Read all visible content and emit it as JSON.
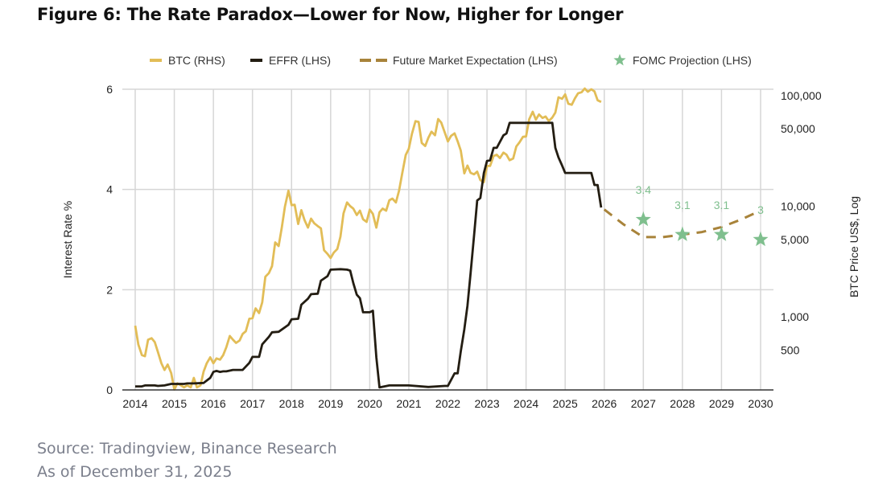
{
  "figure": {
    "title": "Figure 6: The Rate Paradox—Lower for Now, Higher for Longer",
    "source": "Source: Tradingview, Binance Research",
    "as_of": "As of December 31, 2025"
  },
  "colors": {
    "btc": "#e2bd57",
    "effr": "#231d12",
    "future": "#a8833a",
    "fomc": "#7fbf8e",
    "grid": "#d6d6d6",
    "axis": "#333333"
  },
  "chart_data": {
    "type": "line",
    "title": "Figure 6: The Rate Paradox—Lower for Now, Higher for Longer",
    "xlabel": "",
    "ylabel": "Interest Rate %",
    "y2label": "BTC Price US$, Log",
    "xlim": [
      2014,
      2030
    ],
    "ylim": [
      0,
      6
    ],
    "y2lim": [
      218,
      114000
    ],
    "y2scale": "log",
    "grid": true,
    "legend_position": "top",
    "x_ticks": [
      "2014",
      "2015",
      "2016",
      "2017",
      "2018",
      "2019",
      "2020",
      "2021",
      "2022",
      "2023",
      "2024",
      "2025",
      "2026",
      "2027",
      "2028",
      "2029",
      "2030"
    ],
    "y_ticks": [
      "0",
      "2",
      "4",
      "6"
    ],
    "y2_ticks": [
      {
        "value": 100000,
        "label": "100,000"
      },
      {
        "value": 50000,
        "label": "50,000"
      },
      {
        "value": 10000,
        "label": "10,000"
      },
      {
        "value": 5000,
        "label": "5,000"
      },
      {
        "value": 1000,
        "label": "1,000"
      },
      {
        "value": 500,
        "label": "500"
      }
    ],
    "legend": [
      {
        "name": "BTC (RHS)",
        "style": "solid",
        "key": "btc"
      },
      {
        "name": "EFFR (LHS)",
        "style": "solid",
        "key": "effr"
      },
      {
        "name": "Future Market Expectation (LHS)",
        "style": "dashed",
        "key": "future"
      },
      {
        "name": "FOMC Projection (LHS)",
        "style": "star",
        "key": "fomc"
      }
    ],
    "series": [
      {
        "name": "BTC (RHS)",
        "axis": "right",
        "x": [
          2014.0,
          2014.08,
          2014.17,
          2014.25,
          2014.33,
          2014.42,
          2014.5,
          2014.58,
          2014.67,
          2014.75,
          2014.83,
          2014.92,
          2015.0,
          2015.08,
          2015.17,
          2015.25,
          2015.33,
          2015.42,
          2015.5,
          2015.58,
          2015.67,
          2015.75,
          2015.83,
          2015.92,
          2016.0,
          2016.08,
          2016.17,
          2016.25,
          2016.33,
          2016.42,
          2016.5,
          2016.58,
          2016.67,
          2016.75,
          2016.83,
          2016.92,
          2017.0,
          2017.08,
          2017.17,
          2017.25,
          2017.33,
          2017.42,
          2017.5,
          2017.58,
          2017.67,
          2017.75,
          2017.83,
          2017.92,
          2018.0,
          2018.08,
          2018.17,
          2018.25,
          2018.33,
          2018.42,
          2018.5,
          2018.58,
          2018.67,
          2018.75,
          2018.83,
          2018.92,
          2019.0,
          2019.08,
          2019.17,
          2019.25,
          2019.33,
          2019.42,
          2019.5,
          2019.58,
          2019.67,
          2019.75,
          2019.83,
          2019.92,
          2020.0,
          2020.08,
          2020.17,
          2020.25,
          2020.33,
          2020.42,
          2020.5,
          2020.58,
          2020.67,
          2020.75,
          2020.83,
          2020.92,
          2021.0,
          2021.08,
          2021.17,
          2021.25,
          2021.33,
          2021.42,
          2021.5,
          2021.58,
          2021.67,
          2021.75,
          2021.83,
          2021.92,
          2022.0,
          2022.08,
          2022.17,
          2022.25,
          2022.33,
          2022.42,
          2022.5,
          2022.58,
          2022.67,
          2022.75,
          2022.83,
          2022.92,
          2023.0,
          2023.08,
          2023.17,
          2023.25,
          2023.33,
          2023.42,
          2023.5,
          2023.58,
          2023.67,
          2023.75,
          2023.83,
          2023.92,
          2024.0,
          2024.08,
          2024.17,
          2024.25,
          2024.33,
          2024.42,
          2024.5,
          2024.58,
          2024.67,
          2024.75,
          2024.83,
          2024.92,
          2025.0,
          2025.08,
          2025.17,
          2025.25,
          2025.33,
          2025.42,
          2025.5,
          2025.58,
          2025.67,
          2025.75,
          2025.83,
          2025.92
        ],
        "values": [
          830,
          560,
          450,
          440,
          620,
          640,
          590,
          480,
          380,
          330,
          370,
          310,
          220,
          250,
          240,
          230,
          240,
          230,
          280,
          230,
          240,
          320,
          380,
          430,
          380,
          420,
          410,
          450,
          530,
          670,
          620,
          580,
          610,
          700,
          740,
          960,
          970,
          1190,
          1080,
          1350,
          2300,
          2480,
          2870,
          4700,
          4360,
          6400,
          9900,
          13800,
          10200,
          10300,
          6900,
          9200,
          7500,
          6400,
          7700,
          7000,
          6600,
          6300,
          4000,
          3700,
          3400,
          3800,
          4100,
          5300,
          8600,
          10800,
          10000,
          9500,
          8300,
          9100,
          7600,
          7200,
          9300,
          8500,
          6400,
          8800,
          9500,
          9100,
          11300,
          11700,
          10800,
          13800,
          19700,
          29000,
          33000,
          45000,
          58700,
          57800,
          37300,
          35000,
          41500,
          47100,
          43800,
          61300,
          57000,
          46300,
          38500,
          43200,
          45500,
          38600,
          31800,
          19800,
          23300,
          20000,
          19400,
          20500,
          17200,
          16500,
          23100,
          23100,
          28400,
          29200,
          27200,
          30500,
          29200,
          26000,
          27000,
          34600,
          37700,
          42300,
          42600,
          61100,
          71300,
          60600,
          67500,
          62700,
          64600,
          58900,
          63300,
          70200,
          96400,
          93400,
          102400,
          84400,
          82500,
          94200,
          104600,
          107100,
          115700,
          108200,
          114000,
          109000,
          90600,
          87500
        ]
      },
      {
        "name": "EFFR (LHS)",
        "axis": "left",
        "x": [
          2014.0,
          2014.17,
          2014.25,
          2014.33,
          2014.5,
          2014.58,
          2014.75,
          2014.92,
          2015.0,
          2015.25,
          2015.33,
          2015.5,
          2015.75,
          2015.92,
          2016.0,
          2016.08,
          2016.17,
          2016.25,
          2016.33,
          2016.5,
          2016.75,
          2016.92,
          2017.0,
          2017.17,
          2017.25,
          2017.42,
          2017.5,
          2017.67,
          2017.92,
          2018.0,
          2018.17,
          2018.25,
          2018.42,
          2018.5,
          2018.67,
          2018.75,
          2018.92,
          2019.0,
          2019.25,
          2019.42,
          2019.5,
          2019.58,
          2019.67,
          2019.75,
          2019.83,
          2019.92,
          2020.0,
          2020.08,
          2020.17,
          2020.25,
          2020.5,
          2021.0,
          2021.5,
          2021.92,
          2022.0,
          2022.17,
          2022.25,
          2022.33,
          2022.42,
          2022.5,
          2022.58,
          2022.67,
          2022.75,
          2022.83,
          2022.92,
          2023.0,
          2023.08,
          2023.17,
          2023.25,
          2023.42,
          2023.5,
          2023.58,
          2024.0,
          2024.5,
          2024.67,
          2024.75,
          2024.83,
          2024.92,
          2025.0,
          2025.5,
          2025.67,
          2025.75,
          2025.83,
          2025.92
        ],
        "values": [
          0.07,
          0.07,
          0.09,
          0.09,
          0.09,
          0.08,
          0.09,
          0.12,
          0.12,
          0.12,
          0.13,
          0.13,
          0.14,
          0.24,
          0.36,
          0.38,
          0.36,
          0.37,
          0.37,
          0.4,
          0.4,
          0.54,
          0.66,
          0.66,
          0.91,
          1.06,
          1.15,
          1.16,
          1.3,
          1.41,
          1.42,
          1.7,
          1.82,
          1.91,
          1.92,
          2.18,
          2.27,
          2.4,
          2.41,
          2.4,
          2.38,
          2.13,
          1.9,
          1.83,
          1.55,
          1.55,
          1.55,
          1.58,
          0.65,
          0.05,
          0.09,
          0.09,
          0.06,
          0.08,
          0.08,
          0.33,
          0.33,
          0.77,
          1.21,
          1.68,
          2.33,
          3.08,
          3.78,
          3.83,
          4.33,
          4.57,
          4.58,
          4.83,
          4.83,
          5.08,
          5.12,
          5.33,
          5.33,
          5.33,
          5.33,
          4.83,
          4.64,
          4.48,
          4.33,
          4.33,
          4.33,
          4.09,
          4.09,
          3.64
        ]
      },
      {
        "name": "Future Market Expectation (LHS)",
        "axis": "left",
        "style": "dashed",
        "x": [
          2026.0,
          2026.5,
          2027.0,
          2027.5,
          2028.0,
          2028.5,
          2029.0,
          2029.5,
          2029.92
        ],
        "values": [
          3.6,
          3.3,
          3.05,
          3.05,
          3.1,
          3.15,
          3.25,
          3.4,
          3.55
        ]
      },
      {
        "name": "FOMC Projection (LHS)",
        "axis": "left",
        "style": "star",
        "x": [
          2027.0,
          2028.0,
          2029.0,
          2030.0
        ],
        "values": [
          3.4,
          3.1,
          3.1,
          3.0
        ],
        "labels": [
          "3.4",
          "3.1",
          "3.1",
          "3"
        ]
      }
    ]
  }
}
